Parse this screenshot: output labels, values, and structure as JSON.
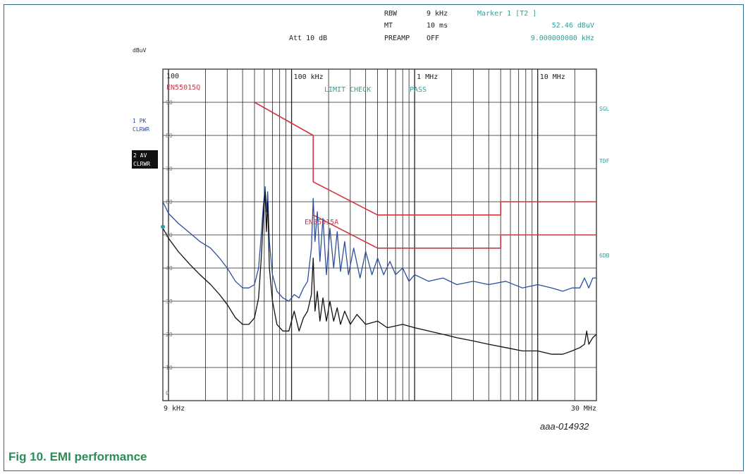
{
  "figure": {
    "caption": "Fig 10.   EMI performance",
    "id_label": "aaa-014932"
  },
  "header": {
    "rbw_label": "RBW",
    "rbw_value": "9 kHz",
    "mt_label": "MT",
    "mt_value": "10 ms",
    "att": "Att 10 dB",
    "preamp_label": "PREAMP",
    "preamp_value": "OFF",
    "marker_title": "Marker 1 [T2 ]",
    "marker_level": "52.46 dBuV",
    "marker_freq": "9.000000000 kHz"
  },
  "side_labels": {
    "unit": "dBuV",
    "trace1_a": "1 PK",
    "trace1_b": "CLRWR",
    "trace2_a": "2 AV",
    "trace2_b": "CLRWR",
    "right_sgl": "SGL",
    "right_tdf": "TDF",
    "right_6db": "6DB"
  },
  "annotations": {
    "ref_level": "100",
    "limit_qp": "EN55015Q",
    "limit_av": "EN55015A",
    "limit_check": "LIMIT CHECK",
    "pass": "PASS",
    "start_freq": "9 kHz",
    "stop_freq": "30 MHz"
  },
  "colors": {
    "peak_trace": "#2d4f9e",
    "average_trace": "#101010",
    "limit_line": "#d2333f",
    "grid": "#222222",
    "annotation_teal": "#2aa198",
    "caption": "#2e8b57"
  },
  "chart_data": {
    "type": "line",
    "xscale": "log",
    "x_range_hz": [
      9000,
      30000000
    ],
    "y_range_dbuv": [
      0,
      100
    ],
    "ylabel": "dBuV",
    "x_ticks": [
      "100 kHz",
      "1 MHz",
      "10 MHz"
    ],
    "y_ticks": [
      0,
      10,
      20,
      30,
      40,
      50,
      60,
      70,
      80,
      90
    ],
    "grid": true,
    "series": [
      {
        "name": "1 PK CLRWR",
        "color_key": "peak_trace",
        "points_hz_dbuv": [
          [
            9000,
            60
          ],
          [
            10000,
            56.5
          ],
          [
            12000,
            53.5
          ],
          [
            15000,
            50.5
          ],
          [
            18000,
            48
          ],
          [
            22000,
            46
          ],
          [
            26000,
            43
          ],
          [
            30000,
            40
          ],
          [
            35000,
            36
          ],
          [
            40000,
            34
          ],
          [
            45000,
            34
          ],
          [
            50000,
            35
          ],
          [
            54000,
            40
          ],
          [
            57000,
            51
          ],
          [
            59000,
            59
          ],
          [
            61000,
            64.5
          ],
          [
            62500,
            57
          ],
          [
            64000,
            63
          ],
          [
            66000,
            48
          ],
          [
            70000,
            38
          ],
          [
            76000,
            33
          ],
          [
            85000,
            31
          ],
          [
            95000,
            30
          ],
          [
            105000,
            32
          ],
          [
            115000,
            31
          ],
          [
            125000,
            34
          ],
          [
            135000,
            36
          ],
          [
            145000,
            46
          ],
          [
            150000,
            61
          ],
          [
            155000,
            48
          ],
          [
            162000,
            57
          ],
          [
            170000,
            42
          ],
          [
            180000,
            55
          ],
          [
            192000,
            38
          ],
          [
            205000,
            52
          ],
          [
            220000,
            40
          ],
          [
            235000,
            51
          ],
          [
            250000,
            39
          ],
          [
            270000,
            48
          ],
          [
            290000,
            38
          ],
          [
            320000,
            46
          ],
          [
            360000,
            37
          ],
          [
            400000,
            45
          ],
          [
            450000,
            38
          ],
          [
            500000,
            43
          ],
          [
            560000,
            38
          ],
          [
            630000,
            42
          ],
          [
            700000,
            38
          ],
          [
            800000,
            40
          ],
          [
            900000,
            36
          ],
          [
            1000000,
            38
          ],
          [
            1300000,
            36
          ],
          [
            1700000,
            37
          ],
          [
            2200000,
            35
          ],
          [
            3000000,
            36
          ],
          [
            4000000,
            35
          ],
          [
            5500000,
            36
          ],
          [
            7500000,
            34
          ],
          [
            10000000,
            35
          ],
          [
            13000000,
            34
          ],
          [
            16000000,
            33
          ],
          [
            19000000,
            34
          ],
          [
            22000000,
            34
          ],
          [
            24000000,
            37
          ],
          [
            26000000,
            34
          ],
          [
            28000000,
            37
          ],
          [
            30000000,
            37
          ]
        ]
      },
      {
        "name": "2 AV CLRWR",
        "color_key": "average_trace",
        "points_hz_dbuv": [
          [
            9000,
            52
          ],
          [
            10000,
            49
          ],
          [
            12000,
            45
          ],
          [
            15000,
            41
          ],
          [
            18000,
            38
          ],
          [
            22000,
            35
          ],
          [
            26000,
            32
          ],
          [
            30000,
            29
          ],
          [
            35000,
            25
          ],
          [
            40000,
            23
          ],
          [
            45000,
            23
          ],
          [
            50000,
            25
          ],
          [
            54000,
            31
          ],
          [
            57000,
            44
          ],
          [
            59000,
            56
          ],
          [
            61000,
            63
          ],
          [
            62500,
            51
          ],
          [
            64000,
            60
          ],
          [
            66000,
            40
          ],
          [
            70000,
            30
          ],
          [
            76000,
            23
          ],
          [
            85000,
            21
          ],
          [
            95000,
            21
          ],
          [
            105000,
            27
          ],
          [
            115000,
            21
          ],
          [
            125000,
            25
          ],
          [
            135000,
            27
          ],
          [
            145000,
            32
          ],
          [
            150000,
            43
          ],
          [
            155000,
            27
          ],
          [
            162000,
            33
          ],
          [
            170000,
            24
          ],
          [
            180000,
            31
          ],
          [
            192000,
            24
          ],
          [
            205000,
            30
          ],
          [
            220000,
            24
          ],
          [
            235000,
            28
          ],
          [
            250000,
            23
          ],
          [
            270000,
            27
          ],
          [
            300000,
            23
          ],
          [
            340000,
            26
          ],
          [
            400000,
            23
          ],
          [
            500000,
            24
          ],
          [
            600000,
            22
          ],
          [
            800000,
            23
          ],
          [
            1000000,
            22
          ],
          [
            1300000,
            21
          ],
          [
            1700000,
            20
          ],
          [
            2200000,
            19
          ],
          [
            3000000,
            18
          ],
          [
            4000000,
            17
          ],
          [
            5500000,
            16
          ],
          [
            7500000,
            15
          ],
          [
            10000000,
            15
          ],
          [
            13000000,
            14
          ],
          [
            16000000,
            14
          ],
          [
            19000000,
            15
          ],
          [
            22000000,
            16
          ],
          [
            24000000,
            17
          ],
          [
            25000000,
            21
          ],
          [
            26000000,
            17
          ],
          [
            28000000,
            19
          ],
          [
            30000000,
            20
          ]
        ]
      },
      {
        "name": "EN55015Q",
        "color_key": "limit_line",
        "points_hz_dbuv": [
          [
            50000,
            90
          ],
          [
            150000,
            80
          ],
          [
            150000,
            66
          ],
          [
            500000,
            56
          ],
          [
            5000000,
            56
          ],
          [
            5000000,
            60
          ],
          [
            30000000,
            60
          ]
        ]
      },
      {
        "name": "EN55015A",
        "color_key": "limit_line",
        "points_hz_dbuv": [
          [
            150000,
            56
          ],
          [
            500000,
            46
          ],
          [
            5000000,
            46
          ],
          [
            5000000,
            50
          ],
          [
            30000000,
            50
          ]
        ]
      }
    ]
  }
}
